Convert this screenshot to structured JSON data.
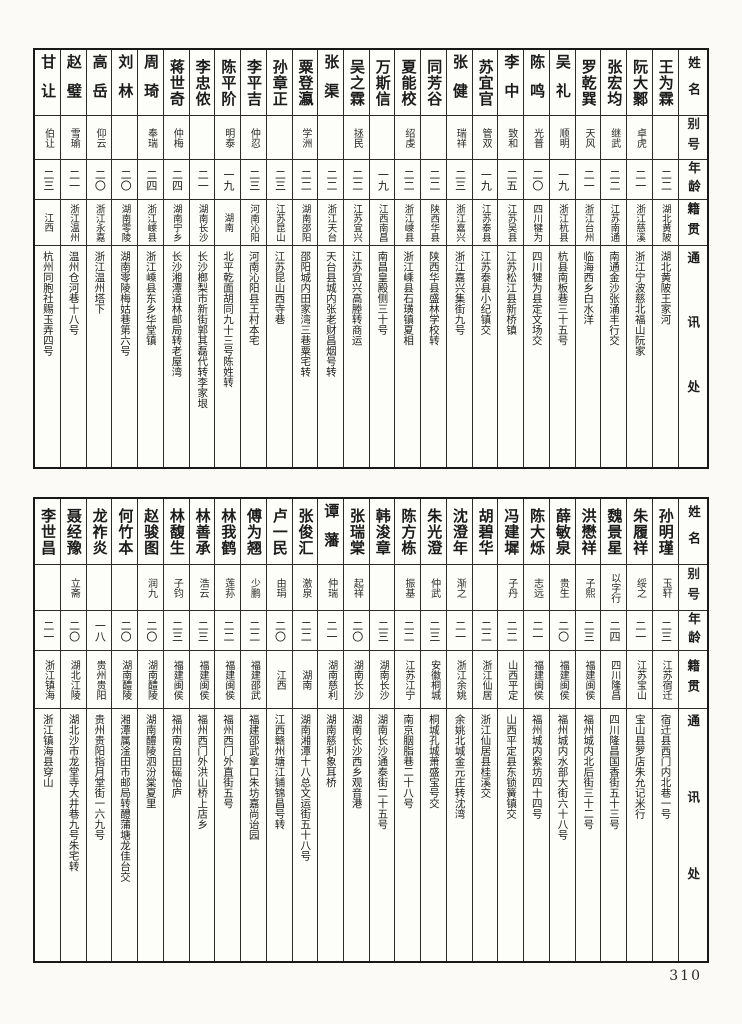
{
  "page": {
    "number": "310"
  },
  "tables": [
    {
      "headers": {
        "name": "姓名",
        "alias": "别号",
        "age": "年龄",
        "native": "籍贯",
        "address": "通讯处"
      },
      "entries": [
        {
          "name": "王为霖",
          "alias": "",
          "age": "二二",
          "native": "湖北黄陂",
          "address": "湖北黄陂王家河"
        },
        {
          "name": "阮大鄹",
          "alias": "卓虎",
          "age": "二一",
          "native": "浙江慈溪",
          "address": "浙江宁波慈北福山阮家"
        },
        {
          "name": "张宏均",
          "alias": "继武",
          "age": "二二",
          "native": "江苏南通",
          "address": "南通金沙张涌丰行交"
        },
        {
          "name": "罗乾巽",
          "alias": "天风",
          "age": "二一",
          "native": "浙江台州",
          "address": "临海西乡白水洋"
        },
        {
          "name": "吴礼",
          "alias": "顺明",
          "age": "一九",
          "native": "浙江杭县",
          "address": "杭县南板巷三十五号"
        },
        {
          "name": "陈鸣",
          "alias": "光普",
          "age": "二〇",
          "native": "四川犍为",
          "address": "四川犍为县定文场交"
        },
        {
          "name": "李中",
          "alias": "致和",
          "age": "二五",
          "native": "江苏吴县",
          "address": "江苏松江县新桥镇"
        },
        {
          "name": "苏宜官",
          "alias": "管双",
          "age": "一九",
          "native": "江苏泰县",
          "address": "江苏泰县小纪镇交"
        },
        {
          "name": "张健",
          "alias": "瑞祥",
          "age": "二三",
          "native": "浙江嘉兴",
          "address": "浙江嘉兴集街九号"
        },
        {
          "name": "同芳谷",
          "alias": "",
          "age": "二二",
          "native": "陕西华县",
          "address": "陕西华县盛林学校转"
        },
        {
          "name": "夏能校",
          "alias": "绍虔",
          "age": "二二",
          "native": "浙江嵊县",
          "address": "浙江嵊县石璜镇夏相"
        },
        {
          "name": "万斯信",
          "alias": "",
          "age": "一九",
          "native": "江西南昌",
          "address": "南昌皇殿侧三十号"
        },
        {
          "name": "吴之霖",
          "alias": "拯民",
          "age": "二二",
          "native": "江苏宜兴",
          "address": "江苏宜兴高塍转商运"
        },
        {
          "name": "张渠",
          "alias": "",
          "age": "二二",
          "native": "浙江天台",
          "address": "天台县城内张老财昌烟号转"
        },
        {
          "name": "粟登瀛",
          "alias": "学洲",
          "age": "二二",
          "native": "湖南邵阳",
          "address": "邵阳城内田家湾三巷粟宅转"
        },
        {
          "name": "孙章正",
          "alias": "",
          "age": "二三",
          "native": "江苏昆山",
          "address": "江苏昆山西寺巷"
        },
        {
          "name": "李平吉",
          "alias": "仲忍",
          "age": "二三",
          "native": "河南沁阳",
          "address": "河南沁阳县王村本宅"
        },
        {
          "name": "陈平阶",
          "alias": "明泰",
          "age": "一九",
          "native": "湖南",
          "address": "北平乾面胡同九十三号陈姓转"
        },
        {
          "name": "李忠侬",
          "alias": "",
          "age": "二一",
          "native": "湖南长沙",
          "address": "长沙榔梨市新街郭其磊代转李家垠"
        },
        {
          "name": "蒋世奇",
          "alias": "仲梅",
          "age": "二四",
          "native": "湖南宁乡",
          "address": "长沙湘潭道林邮局转老屋湾"
        },
        {
          "name": "周琦",
          "alias": "奉瑞",
          "age": "二四",
          "native": "浙江嵊县",
          "address": "浙江嵊县东乡华堂镇"
        },
        {
          "name": "刘林",
          "alias": "",
          "age": "二〇",
          "native": "湖南零陵",
          "address": "湖南零陵梅姑巷第六号"
        },
        {
          "name": "高岳",
          "alias": "仰云",
          "age": "二〇",
          "native": "浙江永嘉",
          "address": "浙江温州塔下"
        },
        {
          "name": "赵璧",
          "alias": "雪瑜",
          "age": "二一",
          "native": "浙江温州",
          "address": "温州仓河巷十八号"
        },
        {
          "name": "甘让",
          "alias": "伯让",
          "age": "二三",
          "native": "江西",
          "address": "杭州同胞社赐玉弄四号"
        }
      ]
    },
    {
      "headers": {
        "name": "姓名",
        "alias": "别号",
        "age": "年龄",
        "native": "籍贯",
        "address": "通讯处"
      },
      "entries": [
        {
          "name": "孙明瑾",
          "alias": "玉轩",
          "age": "二三",
          "native": "江苏宿迁",
          "address": "宿迁县西门内北巷一号"
        },
        {
          "name": "朱履祥",
          "alias": "绥之",
          "age": "二一",
          "native": "江苏宝山",
          "address": "宝山县罗店朱允记米行"
        },
        {
          "name": "魏景星",
          "alias": "以字行",
          "age": "二四",
          "native": "四川隆昌",
          "address": "四川隆昌国香街五十三号"
        },
        {
          "name": "洪懋祥",
          "alias": "子熙",
          "age": "二三",
          "native": "福建闽侯",
          "address": "福州城内北后街三十二号"
        },
        {
          "name": "薛敏泉",
          "alias": "贵生",
          "age": "二〇",
          "native": "福建闽侯",
          "address": "福州城内水部大街六十八号"
        },
        {
          "name": "陈大烁",
          "alias": "志远",
          "age": "二一",
          "native": "福建闽侯",
          "address": "福州城内紫坊四十四号"
        },
        {
          "name": "冯建墀",
          "alias": "子丹",
          "age": "二二",
          "native": "山西平定",
          "address": "山西平定县东锁簧镇交"
        },
        {
          "name": "胡碧华",
          "alias": "",
          "age": "二二",
          "native": "浙江仙居",
          "address": "浙江仙居县桂溪交"
        },
        {
          "name": "沈澄年",
          "alias": "渐之",
          "age": "二一",
          "native": "浙江余姚",
          "address": "余姚北城金元庄转沈湾"
        },
        {
          "name": "朱光澄",
          "alias": "仲武",
          "age": "二三",
          "native": "安徽桐城",
          "address": "桐城孔城萧盛宝号交"
        },
        {
          "name": "陈方栋",
          "alias": "振基",
          "age": "二二",
          "native": "江苏江宁",
          "address": "南京胭脂巷二十八号"
        },
        {
          "name": "韩浚章",
          "alias": "",
          "age": "二三",
          "native": "湖南长沙",
          "address": "湖南长沙通泰街二十五号"
        },
        {
          "name": "张瑞棠",
          "alias": "起祥",
          "age": "二〇",
          "native": "湖南长沙",
          "address": "湖南长沙西乡观音港"
        },
        {
          "name": "谭藩",
          "alias": "仲瑞",
          "age": "二一",
          "native": "湖南慈利",
          "address": "湖南慈利象耳桥"
        },
        {
          "name": "张俊汇",
          "alias": "激泉",
          "age": "二二",
          "native": "湖南",
          "address": "湖南湘潭十八总文运街五十八号"
        },
        {
          "name": "卢一民",
          "alias": "由琄",
          "age": "二〇",
          "native": "江西",
          "address": "江西赣州塘江铺锦昌号转"
        },
        {
          "name": "傅为翘",
          "alias": "少鹏",
          "age": "二二",
          "native": "福建邵武",
          "address": "福建邵武拿口朱坊嘉尚诒园"
        },
        {
          "name": "林我鹤",
          "alias": "莲荪",
          "age": "二二",
          "native": "福建闽侯",
          "address": "福州西门外直街五号"
        },
        {
          "name": "林善承",
          "alias": "浩云",
          "age": "二三",
          "native": "福建闽侯",
          "address": "福州西门外洪山桥上店乡"
        },
        {
          "name": "林馥生",
          "alias": "子钧",
          "age": "二三",
          "native": "福建闽侯",
          "address": "福州南台田磘怡庐"
        },
        {
          "name": "赵骏图",
          "alias": "润九",
          "age": "二〇",
          "native": "湖南醴陵",
          "address": "湖南醴陵泗汾棠夏里"
        },
        {
          "name": "何竹本",
          "alias": "",
          "age": "二〇",
          "native": "湖南醴陵",
          "address": "湘潭属淦田市邮局转醴蒲塘龙佳台交"
        },
        {
          "name": "龙祚炎",
          "alias": "",
          "age": "一八",
          "native": "贵州贵阳",
          "address": "贵州贵阳指月堂街一六九号"
        },
        {
          "name": "聂经豫",
          "alias": "立斋",
          "age": "二〇",
          "native": "湖北江陵",
          "address": "湖北沙市龙堂寺大井巷九号朱宅转"
        },
        {
          "name": "李世昌",
          "alias": "",
          "age": "二一",
          "native": "浙江镇海",
          "address": "浙江镇海县穿山"
        }
      ]
    }
  ]
}
